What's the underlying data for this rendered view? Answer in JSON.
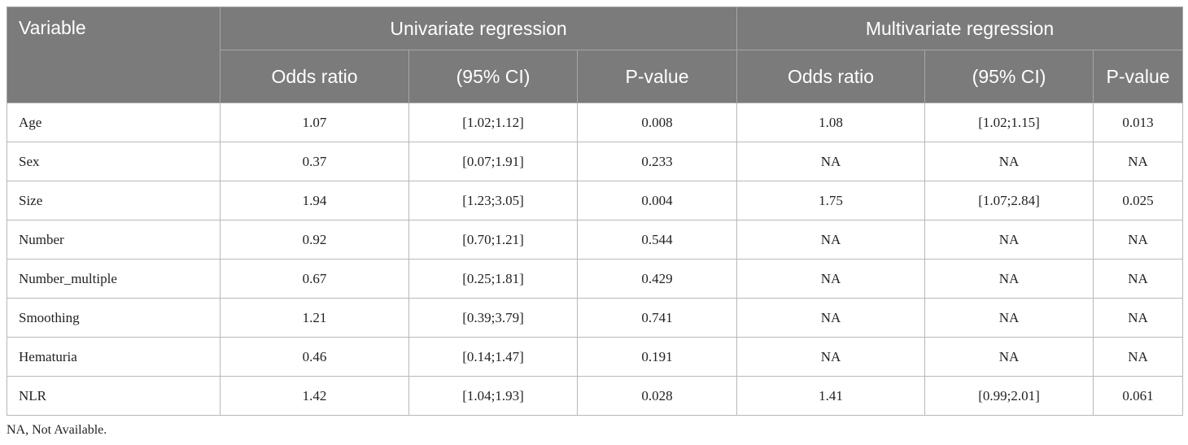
{
  "table": {
    "headers": {
      "variable": "Variable",
      "univariate": "Univariate regression",
      "multivariate": "Multivariate regression",
      "sub": [
        "Odds ratio",
        "(95% CI)",
        "P-value",
        "Odds ratio",
        "(95% CI)",
        "P-value"
      ]
    },
    "rows": [
      [
        "Age",
        "1.07",
        "[1.02;1.12]",
        "0.008",
        "1.08",
        "[1.02;1.15]",
        "0.013"
      ],
      [
        "Sex",
        "0.37",
        "[0.07;1.91]",
        "0.233",
        "NA",
        "NA",
        "NA"
      ],
      [
        "Size",
        "1.94",
        "[1.23;3.05]",
        "0.004",
        "1.75",
        "[1.07;2.84]",
        "0.025"
      ],
      [
        "Number",
        "0.92",
        "[0.70;1.21]",
        "0.544",
        "NA",
        "NA",
        "NA"
      ],
      [
        "Number_multiple",
        "0.67",
        "[0.25;1.81]",
        "0.429",
        "NA",
        "NA",
        "NA"
      ],
      [
        "Smoothing",
        "1.21",
        "[0.39;3.79]",
        "0.741",
        "NA",
        "NA",
        "NA"
      ],
      [
        "Hematuria",
        "0.46",
        "[0.14;1.47]",
        "0.191",
        "NA",
        "NA",
        "NA"
      ],
      [
        "NLR",
        "1.42",
        "[1.04;1.93]",
        "0.028",
        "1.41",
        "[0.99;2.01]",
        "0.061"
      ]
    ]
  },
  "footnote": "NA, Not Available.",
  "colors": {
    "header_bg": "#7b7b7b",
    "header_text": "#ffffff",
    "border": "#b8b8b8"
  }
}
